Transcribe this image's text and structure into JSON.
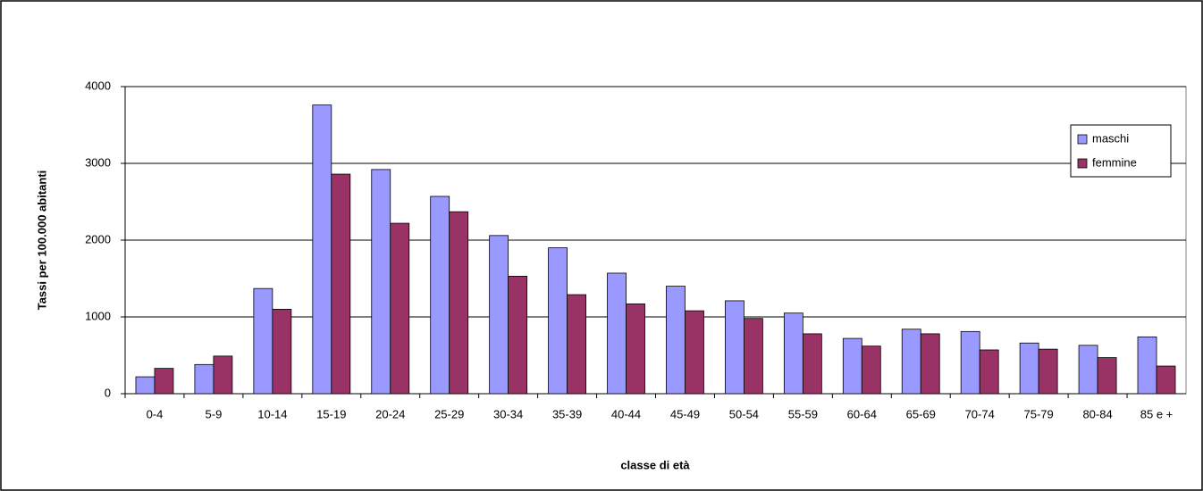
{
  "chart_data": {
    "type": "bar",
    "x_label": "classe di età",
    "y_label": "Tassi per 100.000 abitanti",
    "categories": [
      "0-4",
      "5-9",
      "10-14",
      "15-19",
      "20-24",
      "25-29",
      "30-34",
      "35-39",
      "40-44",
      "45-49",
      "50-54",
      "55-59",
      "60-64",
      "65-69",
      "70-74",
      "75-79",
      "80-84",
      "85 e +"
    ],
    "series": [
      {
        "name": "maschi",
        "color": "#9999ff",
        "values": [
          220,
          380,
          1370,
          3760,
          2920,
          2570,
          2060,
          1900,
          1570,
          1400,
          1210,
          1050,
          720,
          840,
          810,
          660,
          630,
          740
        ]
      },
      {
        "name": "femmine",
        "color": "#993366",
        "values": [
          330,
          490,
          1100,
          2860,
          2220,
          2370,
          1530,
          1290,
          1170,
          1080,
          980,
          780,
          620,
          780,
          570,
          580,
          470,
          360
        ]
      }
    ],
    "ylim": [
      0,
      4000
    ],
    "yticks": [
      0,
      1000,
      2000,
      3000,
      4000
    ],
    "grid": true,
    "legend": "top-right"
  }
}
